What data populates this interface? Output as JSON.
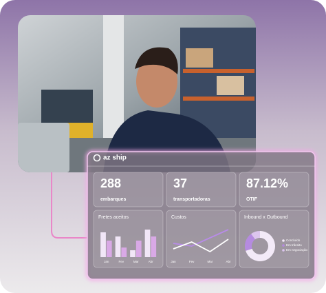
{
  "brand": "az ship",
  "kpis": [
    {
      "value": "288",
      "label": "embarques"
    },
    {
      "value": "37",
      "label": "transportadoras"
    },
    {
      "value": "87.12%",
      "label": "OTIF"
    }
  ],
  "charts": [
    {
      "type": "bar",
      "title": "Fretes aceitos",
      "categories": [
        "Jan",
        "Fev",
        "Mar",
        "Abr"
      ],
      "series": [
        {
          "color": "#f1e6f7",
          "values": [
            36,
            30,
            10,
            40
          ]
        },
        {
          "color": "#d9a9e6",
          "values": [
            24,
            14,
            24,
            30
          ]
        }
      ]
    },
    {
      "type": "line",
      "title": "Custos",
      "categories": [
        "Jan",
        "Fev",
        "Mar",
        "Abr"
      ],
      "series": [
        {
          "color": "#b88be8",
          "values": [
            6,
            4,
            10,
            16
          ]
        },
        {
          "color": "#ffffff",
          "values": [
            2,
            7,
            0,
            9
          ]
        }
      ]
    },
    {
      "type": "pie",
      "title": "Inbound x Outbound",
      "categories": [
        "Concluído",
        "Em trânsito",
        "Em negociação"
      ],
      "values": [
        70,
        20,
        10
      ],
      "colors": [
        "#f3eaf8",
        "#b58be0",
        "#dcc5ee"
      ]
    }
  ]
}
